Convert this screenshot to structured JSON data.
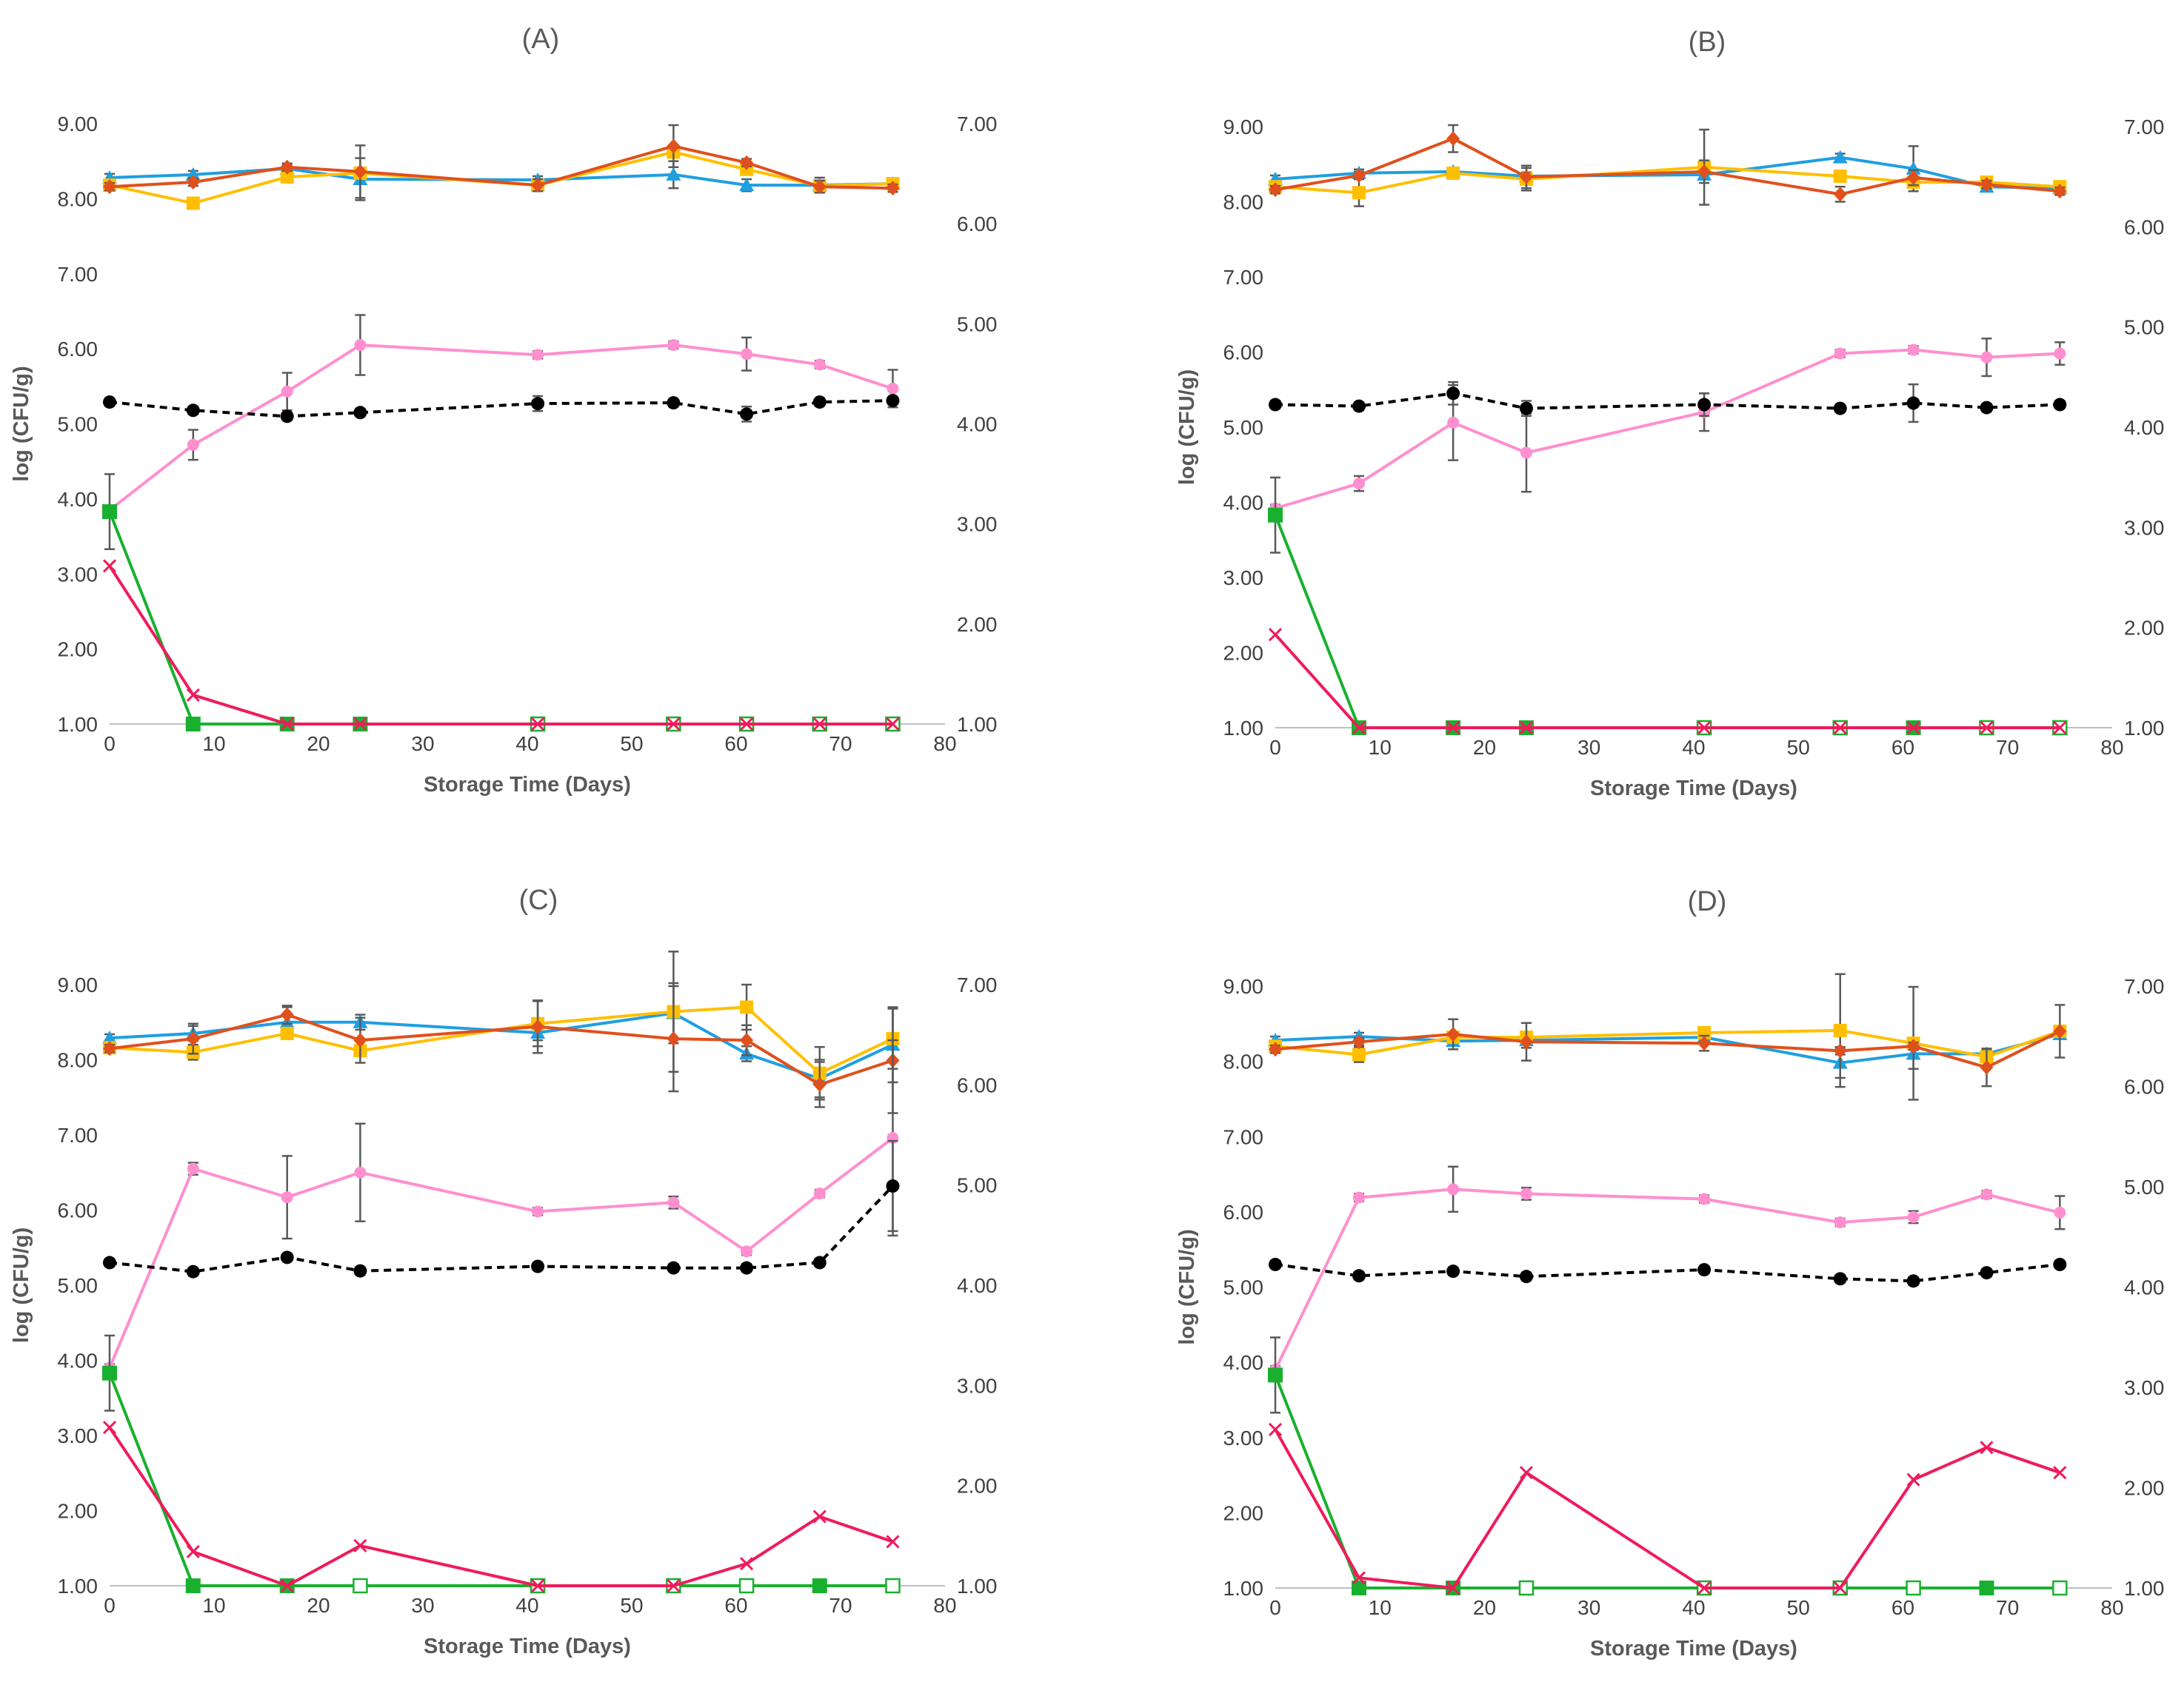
{
  "chart_data": [
    {
      "type": "line",
      "title": "(A)",
      "xlabel": "Storage Time (Days)",
      "ylabel": "log (CFU/g)",
      "xlim": [
        0,
        80
      ],
      "ylim": [
        1,
        9
      ],
      "y2lim": [
        1,
        7
      ],
      "x_ticks": [
        "0",
        "10",
        "20",
        "30",
        "40",
        "50",
        "60",
        "70",
        "80"
      ],
      "y_ticks": [
        "1.00",
        "2.00",
        "3.00",
        "4.00",
        "5.00",
        "6.00",
        "7.00",
        "8.00",
        "9.00"
      ],
      "y2_ticks": [
        "1.00",
        "2.00",
        "3.00",
        "4.00",
        "5.00",
        "6.00",
        "7.00"
      ],
      "x": [
        0,
        8,
        17,
        24,
        41,
        54,
        61,
        68,
        75
      ],
      "series": [
        {
          "name": "blue",
          "color": "#1f9fe0",
          "marker": "triangle",
          "dash": false,
          "axis": "left",
          "values": [
            8.28,
            8.32,
            8.4,
            8.26,
            8.25,
            8.32,
            8.18,
            8.18,
            8.2
          ],
          "err": [
            0.05,
            0.05,
            0.05,
            0.28,
            0.05,
            0.18,
            0.08,
            0.1,
            0.05
          ]
        },
        {
          "name": "yellow",
          "color": "#ffbf00",
          "marker": "square",
          "dash": false,
          "axis": "left",
          "values": [
            8.18,
            7.94,
            8.29,
            8.34,
            8.18,
            8.62,
            8.39,
            8.17,
            8.2
          ],
          "err": [
            0.05,
            0.05,
            0.05,
            0.05,
            0.05,
            0.05,
            0.05,
            0.05,
            0.05
          ]
        },
        {
          "name": "orange",
          "color": "#e0501c",
          "marker": "diamond",
          "dash": false,
          "axis": "left",
          "values": [
            8.16,
            8.22,
            8.42,
            8.36,
            8.18,
            8.7,
            8.48,
            8.16,
            8.14
          ],
          "err": [
            0.05,
            0.05,
            0.05,
            0.35,
            0.08,
            0.28,
            0.05,
            0.08,
            0.05
          ]
        },
        {
          "name": "pink",
          "color": "#ff8fcf",
          "marker": "circle",
          "dash": false,
          "axis": "left",
          "values": [
            3.85,
            4.72,
            5.43,
            6.05,
            5.92,
            6.05,
            5.93,
            5.79,
            5.47
          ],
          "err": [
            0.05,
            0.2,
            0.25,
            0.4,
            0.05,
            0.05,
            0.22,
            0.05,
            0.25
          ]
        },
        {
          "name": "black",
          "color": "#000000",
          "marker": "circle",
          "dash": true,
          "axis": "left",
          "values": [
            5.29,
            5.18,
            5.1,
            5.15,
            5.27,
            5.28,
            5.13,
            5.29,
            5.31
          ],
          "err": [
            0.05,
            0.05,
            0.05,
            0.05,
            0.1,
            0.05,
            0.1,
            0.05,
            0.05
          ]
        },
        {
          "name": "green",
          "color": "#19b02f",
          "marker": "square",
          "dash": false,
          "axis": "left",
          "values": [
            3.83,
            1.0,
            1.0,
            1.0,
            1.0,
            1.0,
            1.0,
            1.0,
            1.0
          ],
          "err": [
            0.5,
            0,
            0,
            0,
            0,
            0,
            0,
            0,
            0
          ],
          "hollow": [
            false,
            false,
            false,
            false,
            true,
            true,
            true,
            true,
            true
          ]
        },
        {
          "name": "red",
          "color": "#ef1b5b",
          "marker": "x",
          "dash": false,
          "axis": "right",
          "values": [
            2.58,
            1.29,
            1.0,
            1.0,
            1.0,
            1.0,
            1.0,
            1.0,
            1.0
          ],
          "err": [
            0,
            0,
            0,
            0,
            0,
            0,
            0,
            0,
            0
          ]
        }
      ]
    },
    {
      "type": "line",
      "title": "(B)",
      "xlabel": "Storage Time (Days)",
      "ylabel": "log (CFU/g)",
      "xlim": [
        0,
        80
      ],
      "ylim": [
        1,
        9
      ],
      "y2lim": [
        1,
        7
      ],
      "x_ticks": [
        "0",
        "10",
        "20",
        "30",
        "40",
        "50",
        "60",
        "70",
        "80"
      ],
      "y_ticks": [
        "1.00",
        "2.00",
        "3.00",
        "4.00",
        "5.00",
        "6.00",
        "7.00",
        "8.00",
        "9.00"
      ],
      "y2_ticks": [
        "1.00",
        "2.00",
        "3.00",
        "4.00",
        "5.00",
        "6.00",
        "7.00"
      ],
      "x": [
        0,
        8,
        17,
        24,
        41,
        54,
        61,
        68,
        75
      ],
      "series": [
        {
          "name": "blue",
          "color": "#1f9fe0",
          "marker": "triangle",
          "dash": false,
          "axis": "left",
          "values": [
            8.3,
            8.38,
            8.4,
            8.34,
            8.36,
            8.59,
            8.44,
            8.2,
            8.18
          ],
          "err": [
            0.05,
            0.05,
            0.05,
            0.05,
            0.05,
            0.05,
            0.3,
            0.05,
            0.05
          ]
        },
        {
          "name": "yellow",
          "color": "#ffbf00",
          "marker": "square",
          "dash": false,
          "axis": "left",
          "values": [
            8.2,
            8.12,
            8.38,
            8.3,
            8.46,
            8.34,
            8.26,
            8.26,
            8.2
          ],
          "err": [
            0.05,
            0.18,
            0.05,
            0.15,
            0.5,
            0.05,
            0.05,
            0.05,
            0.05
          ]
        },
        {
          "name": "orange",
          "color": "#e0501c",
          "marker": "diamond",
          "dash": false,
          "axis": "left",
          "values": [
            8.16,
            8.35,
            8.84,
            8.33,
            8.4,
            8.1,
            8.32,
            8.23,
            8.14
          ],
          "err": [
            0.05,
            0.05,
            0.18,
            0.15,
            0.15,
            0.1,
            0.1,
            0.05,
            0.05
          ]
        },
        {
          "name": "pink",
          "color": "#ff8fcf",
          "marker": "circle",
          "dash": false,
          "axis": "left",
          "values": [
            3.92,
            4.25,
            5.06,
            4.66,
            5.2,
            5.98,
            6.03,
            5.93,
            5.98
          ],
          "err": [
            0.05,
            0.1,
            0.5,
            0.52,
            0.25,
            0.05,
            0.05,
            0.25,
            0.15
          ]
        },
        {
          "name": "black",
          "color": "#000000",
          "marker": "circle",
          "dash": true,
          "axis": "left",
          "values": [
            5.3,
            5.28,
            5.45,
            5.25,
            5.3,
            5.25,
            5.32,
            5.26,
            5.3
          ],
          "err": [
            0.05,
            0.05,
            0.15,
            0.1,
            0.15,
            0.05,
            0.25,
            0.05,
            0.05
          ]
        },
        {
          "name": "green",
          "color": "#19b02f",
          "marker": "square",
          "dash": false,
          "axis": "left",
          "values": [
            3.83,
            1.0,
            1.0,
            1.0,
            1.0,
            1.0,
            1.0,
            1.0,
            1.0
          ],
          "err": [
            0.5,
            0,
            0,
            0,
            0,
            0,
            0,
            0,
            0
          ],
          "hollow": [
            false,
            false,
            false,
            false,
            true,
            true,
            false,
            true,
            true
          ]
        },
        {
          "name": "red",
          "color": "#ef1b5b",
          "marker": "x",
          "dash": false,
          "axis": "right",
          "values": [
            1.93,
            1.0,
            1.0,
            1.0,
            1.0,
            1.0,
            1.0,
            1.0,
            1.0
          ],
          "err": [
            0,
            0,
            0,
            0,
            0,
            0,
            0,
            0,
            0
          ]
        }
      ]
    },
    {
      "type": "line",
      "title": "(C)",
      "xlabel": "Storage Time (Days)",
      "ylabel": "log (CFU/g)",
      "xlim": [
        0,
        80
      ],
      "ylim": [
        1,
        9
      ],
      "y2lim": [
        1,
        7
      ],
      "x_ticks": [
        "0",
        "10",
        "20",
        "30",
        "40",
        "50",
        "60",
        "70",
        "80"
      ],
      "y_ticks": [
        "1.00",
        "2.00",
        "3.00",
        "4.00",
        "5.00",
        "6.00",
        "7.00",
        "8.00",
        "9.00"
      ],
      "y2_ticks": [
        "1.00",
        "2.00",
        "3.00",
        "4.00",
        "5.00",
        "6.00",
        "7.00"
      ],
      "x": [
        0,
        8,
        17,
        24,
        41,
        54,
        61,
        68,
        75
      ],
      "series": [
        {
          "name": "blue",
          "color": "#1f9fe0",
          "marker": "triangle",
          "dash": false,
          "axis": "left",
          "values": [
            8.29,
            8.35,
            8.5,
            8.5,
            8.36,
            8.62,
            8.08,
            7.75,
            8.2
          ],
          "err": [
            0.05,
            0.1,
            0.2,
            0.1,
            0.1,
            0.4,
            0.1,
            0.25,
            0.5
          ]
        },
        {
          "name": "yellow",
          "color": "#ffbf00",
          "marker": "square",
          "dash": false,
          "axis": "left",
          "values": [
            8.16,
            8.1,
            8.35,
            8.12,
            8.48,
            8.64,
            8.7,
            7.82,
            8.28
          ],
          "err": [
            0.05,
            0.1,
            0.05,
            0.05,
            0.3,
            0.8,
            0.3,
            0.35,
            0.4
          ]
        },
        {
          "name": "orange",
          "color": "#e0501c",
          "marker": "diamond",
          "dash": false,
          "axis": "left",
          "values": [
            8.15,
            8.28,
            8.6,
            8.26,
            8.44,
            8.28,
            8.26,
            7.67,
            7.99
          ],
          "err": [
            0.05,
            0.2,
            0.12,
            0.3,
            0.35,
            0.7,
            0.2,
            0.3,
            0.7
          ]
        },
        {
          "name": "pink",
          "color": "#ff8fcf",
          "marker": "circle",
          "dash": false,
          "axis": "left",
          "values": [
            3.9,
            6.55,
            6.17,
            6.5,
            5.98,
            6.1,
            5.45,
            6.22,
            6.96
          ],
          "err": [
            0.05,
            0.08,
            0.55,
            0.65,
            0.05,
            0.08,
            0.05,
            0.05,
            1.3
          ]
        },
        {
          "name": "black",
          "color": "#000000",
          "marker": "circle",
          "dash": true,
          "axis": "left",
          "values": [
            5.3,
            5.18,
            5.37,
            5.19,
            5.25,
            5.23,
            5.23,
            5.3,
            6.32
          ],
          "err": [
            0.05,
            0.05,
            0.05,
            0.05,
            0.05,
            0.05,
            0.05,
            0.05,
            0.6
          ]
        },
        {
          "name": "green",
          "color": "#19b02f",
          "marker": "square",
          "dash": false,
          "axis": "left",
          "values": [
            3.83,
            1.0,
            1.0,
            1.0,
            1.0,
            1.0,
            1.0,
            1.0,
            1.0
          ],
          "err": [
            0.5,
            0,
            0,
            0,
            0,
            0,
            0,
            0,
            0
          ],
          "hollow": [
            false,
            false,
            false,
            true,
            true,
            true,
            true,
            false,
            true
          ]
        },
        {
          "name": "red",
          "color": "#ef1b5b",
          "marker": "x",
          "dash": false,
          "axis": "right",
          "values": [
            2.58,
            1.34,
            1.0,
            1.4,
            1.0,
            1.0,
            1.22,
            1.69,
            1.44
          ],
          "err": [
            0,
            0,
            0,
            0,
            0,
            0,
            0,
            0,
            0
          ]
        }
      ]
    },
    {
      "type": "line",
      "title": "(D)",
      "xlabel": "Storage Time (Days)",
      "ylabel": "log (CFU/g)",
      "xlim": [
        0,
        80
      ],
      "ylim": [
        1,
        9
      ],
      "y2lim": [
        1,
        7
      ],
      "x_ticks": [
        "0",
        "10",
        "20",
        "30",
        "40",
        "50",
        "60",
        "70",
        "80"
      ],
      "y_ticks": [
        "1.00",
        "2.00",
        "3.00",
        "4.00",
        "5.00",
        "6.00",
        "7.00",
        "8.00",
        "9.00"
      ],
      "y2_ticks": [
        "1.00",
        "2.00",
        "3.00",
        "4.00",
        "5.00",
        "6.00",
        "7.00"
      ],
      "x": [
        0,
        8,
        17,
        24,
        41,
        54,
        61,
        68,
        75
      ],
      "series": [
        {
          "name": "blue",
          "color": "#1f9fe0",
          "marker": "triangle",
          "dash": false,
          "axis": "left",
          "values": [
            8.28,
            8.33,
            8.27,
            8.28,
            8.32,
            7.98,
            8.1,
            8.1,
            8.36
          ],
          "err": [
            0.05,
            0.05,
            0.05,
            0.1,
            0.05,
            0.2,
            0.2,
            0.05,
            0.05
          ]
        },
        {
          "name": "yellow",
          "color": "#ffbf00",
          "marker": "square",
          "dash": false,
          "axis": "left",
          "values": [
            8.2,
            8.09,
            8.32,
            8.32,
            8.38,
            8.41,
            8.24,
            8.06,
            8.4
          ],
          "err": [
            0.05,
            0.1,
            0.05,
            0.05,
            0.05,
            0.75,
            0.75,
            0.05,
            0.05
          ]
        },
        {
          "name": "orange",
          "color": "#e0501c",
          "marker": "diamond",
          "dash": false,
          "axis": "left",
          "values": [
            8.16,
            8.26,
            8.36,
            8.26,
            8.24,
            8.14,
            8.2,
            7.92,
            8.4
          ],
          "err": [
            0.05,
            0.05,
            0.2,
            0.25,
            0.1,
            0.05,
            0.05,
            0.25,
            0.35
          ]
        },
        {
          "name": "pink",
          "color": "#ff8fcf",
          "marker": "circle",
          "dash": false,
          "axis": "left",
          "values": [
            3.9,
            6.19,
            6.3,
            6.24,
            6.17,
            5.86,
            5.93,
            6.23,
            5.99
          ],
          "err": [
            0.05,
            0.05,
            0.3,
            0.08,
            0.05,
            0.05,
            0.08,
            0.05,
            0.22
          ]
        },
        {
          "name": "black",
          "color": "#000000",
          "marker": "circle",
          "dash": true,
          "axis": "left",
          "values": [
            5.3,
            5.15,
            5.21,
            5.14,
            5.23,
            5.11,
            5.08,
            5.19,
            5.3
          ],
          "err": [
            0.05,
            0.05,
            0.05,
            0.05,
            0.05,
            0.05,
            0.05,
            0.05,
            0.05
          ]
        },
        {
          "name": "green",
          "color": "#19b02f",
          "marker": "square",
          "dash": false,
          "axis": "left",
          "values": [
            3.83,
            1.0,
            1.0,
            1.0,
            1.0,
            1.0,
            1.0,
            1.0,
            1.0
          ],
          "err": [
            0.5,
            0,
            0,
            0,
            0,
            0,
            0,
            0,
            0
          ],
          "hollow": [
            false,
            false,
            false,
            true,
            true,
            true,
            true,
            false,
            true
          ]
        },
        {
          "name": "red",
          "color": "#ef1b5b",
          "marker": "x",
          "dash": false,
          "axis": "right",
          "values": [
            2.58,
            1.1,
            1.0,
            2.15,
            1.0,
            1.0,
            2.08,
            2.4,
            2.15
          ],
          "err": [
            0,
            0,
            0,
            0,
            0,
            0,
            0,
            0,
            0
          ]
        }
      ]
    }
  ]
}
